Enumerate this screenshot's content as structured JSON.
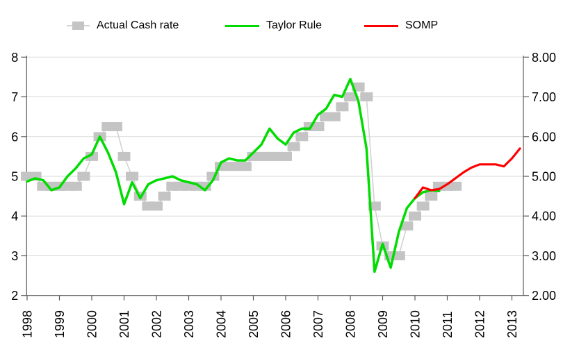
{
  "legend": {
    "items": [
      {
        "label": "Actual Cash rate",
        "marker": "square-on-line",
        "color": "#c4c4c4",
        "line_color": "#d2d2d2"
      },
      {
        "label": "Taylor Rule",
        "marker": "line",
        "color": "#00dc00"
      },
      {
        "label": "SOMP",
        "marker": "line",
        "color": "#ff0000"
      }
    ]
  },
  "chart_data": {
    "type": "line",
    "title": "",
    "grid": true,
    "legend_position": "top",
    "colors": {
      "grid": "#d9d9d9",
      "axis": "#595959",
      "text": "#000000",
      "background": "#ffffff"
    },
    "x_axis": {
      "tick_labels": [
        "1998",
        "1999",
        "2000",
        "2001",
        "2002",
        "2003",
        "2004",
        "2005",
        "2006",
        "2007",
        "2008",
        "2009",
        "2010",
        "2011",
        "2012",
        "2013"
      ],
      "start_year": 1998,
      "end": 2013.35,
      "label_rotation_deg": -90
    },
    "y_axis_left": {
      "tick_labels": [
        "8",
        "7",
        "6",
        "5",
        "4",
        "3",
        "2"
      ],
      "tick_values": [
        8,
        7,
        6,
        5,
        4,
        3,
        2
      ],
      "range": [
        2,
        8
      ]
    },
    "y_axis_right": {
      "tick_labels": [
        "8.00",
        "7.00",
        "6.00",
        "5.00",
        "4.00",
        "3.00",
        "2.00"
      ],
      "tick_values": [
        8,
        7,
        6,
        5,
        4,
        3,
        2
      ],
      "range": [
        2,
        8
      ]
    },
    "series": [
      {
        "name": "Actual Cash rate",
        "type": "square-markers-with-connector",
        "color": "#c4c4c4",
        "connector_color": "#d2d2d2",
        "start": 1998.0,
        "step": 0.25,
        "values": [
          5.0,
          5.0,
          4.75,
          4.75,
          4.75,
          4.75,
          4.75,
          5.0,
          5.5,
          6.0,
          6.25,
          6.25,
          5.5,
          5.0,
          4.5,
          4.25,
          4.25,
          4.5,
          4.75,
          4.75,
          4.75,
          4.75,
          4.75,
          5.0,
          5.25,
          5.25,
          5.25,
          5.25,
          5.5,
          5.5,
          5.5,
          5.5,
          5.5,
          5.75,
          6.0,
          6.25,
          6.25,
          6.5,
          6.5,
          6.75,
          7.0,
          7.25,
          7.0,
          4.25,
          3.25,
          3.0,
          3.0,
          3.75,
          4.0,
          4.25,
          4.5,
          4.75,
          4.75,
          4.75
        ]
      },
      {
        "name": "Taylor Rule",
        "type": "line",
        "color": "#00dc00",
        "width": 3.5,
        "start": 1998.0,
        "step": 0.25,
        "values": [
          4.87,
          4.95,
          4.9,
          4.65,
          4.72,
          5.0,
          5.2,
          5.45,
          5.55,
          6.0,
          5.6,
          5.1,
          4.3,
          4.85,
          4.45,
          4.8,
          4.9,
          4.95,
          5.0,
          4.9,
          4.85,
          4.8,
          4.65,
          4.9,
          5.35,
          5.45,
          5.4,
          5.4,
          5.6,
          5.8,
          6.2,
          5.95,
          5.8,
          6.1,
          6.2,
          6.2,
          6.55,
          6.7,
          7.05,
          7.0,
          7.45,
          6.9,
          5.7,
          2.6,
          3.3,
          2.7,
          3.6,
          4.2,
          4.45,
          4.6,
          4.65,
          4.63
        ]
      },
      {
        "name": "SOMP",
        "type": "line",
        "color": "#ff0000",
        "width": 3.2,
        "start": 2010.0,
        "step": 0.25,
        "values": [
          4.45,
          4.72,
          4.65,
          4.68,
          4.8,
          4.95,
          5.1,
          5.22,
          5.3,
          5.3,
          5.3,
          5.25,
          5.45,
          5.7
        ]
      }
    ]
  }
}
